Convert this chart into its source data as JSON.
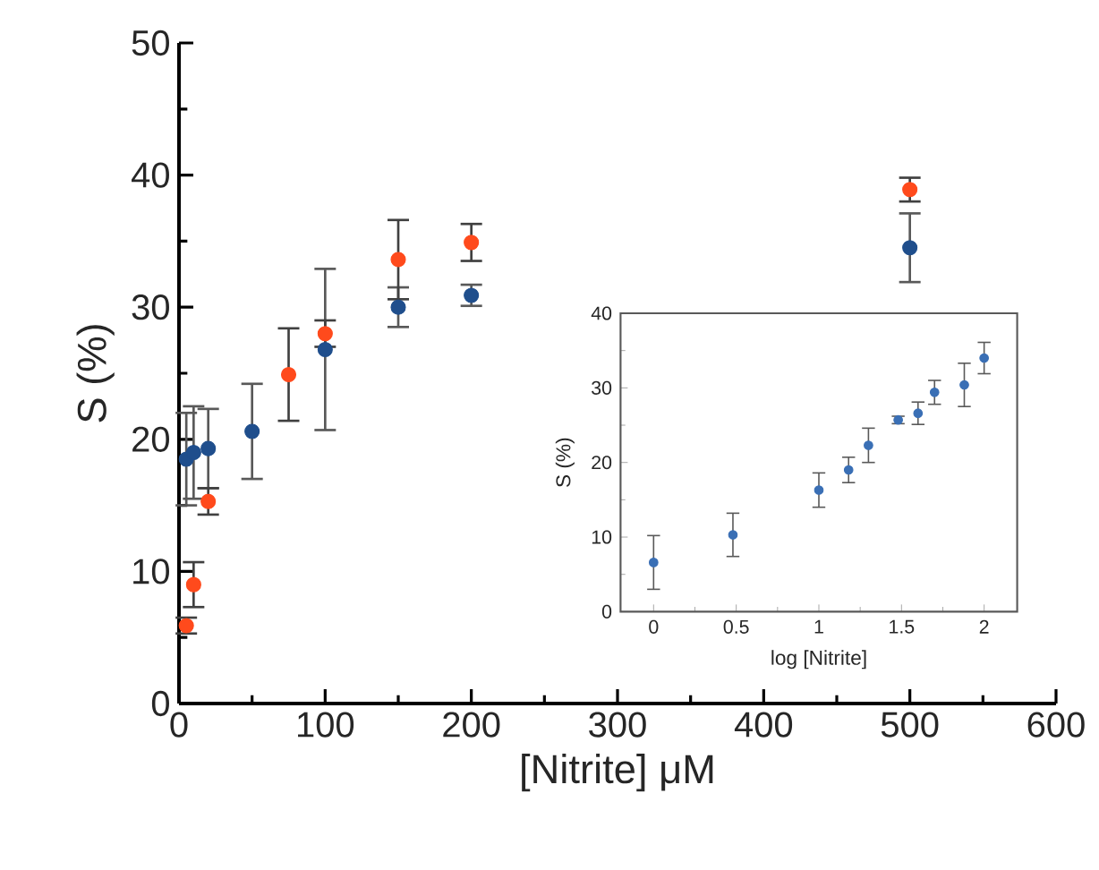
{
  "chart_data": [
    {
      "type": "scatter",
      "xlabel": "[Nitrite] μM",
      "ylabel": "S (%)",
      "xlim": [
        0,
        600
      ],
      "ylim": [
        0,
        50
      ],
      "xticks": [
        0,
        100,
        200,
        300,
        400,
        500,
        600
      ],
      "yticks": [
        0,
        10,
        20,
        30,
        40,
        50
      ],
      "marker": "circle",
      "series": [
        {
          "color": "#1f4e8c",
          "x": [
            5,
            10,
            20,
            50,
            100,
            150,
            200,
            500
          ],
          "values": [
            18.5,
            19.0,
            19.3,
            20.6,
            26.8,
            30.0,
            30.9,
            34.5
          ],
          "errors": [
            3.5,
            3.5,
            3.0,
            3.6,
            6.1,
            1.5,
            0.8,
            2.6
          ]
        },
        {
          "color": "#ff4a1c",
          "x": [
            5,
            10,
            20,
            75,
            100,
            150,
            200,
            500
          ],
          "values": [
            5.9,
            9.0,
            15.3,
            24.9,
            28.0,
            33.6,
            34.9,
            38.9
          ],
          "errors": [
            0.6,
            1.7,
            1.0,
            3.5,
            1.0,
            3.0,
            1.4,
            0.9
          ]
        }
      ]
    },
    {
      "type": "scatter",
      "xlabel": "log [Nitrite]",
      "ylabel": "S (%)",
      "xlim": [
        -0.2,
        2.2
      ],
      "ylim": [
        0,
        40
      ],
      "xticks": [
        0,
        0.5,
        1,
        1.5,
        2
      ],
      "yticks": [
        0,
        10,
        20,
        30,
        40
      ],
      "marker": "circle",
      "series": [
        {
          "color": "#3a6fb5",
          "x": [
            0,
            0.48,
            1.0,
            1.18,
            1.3,
            1.48,
            1.6,
            1.7,
            1.88,
            2.0
          ],
          "values": [
            6.6,
            10.3,
            16.3,
            19.0,
            22.3,
            25.7,
            26.6,
            29.4,
            30.4,
            34.0
          ],
          "errors": [
            3.6,
            2.9,
            2.3,
            1.7,
            2.3,
            0.5,
            1.5,
            1.6,
            2.9,
            2.1
          ]
        }
      ]
    }
  ]
}
